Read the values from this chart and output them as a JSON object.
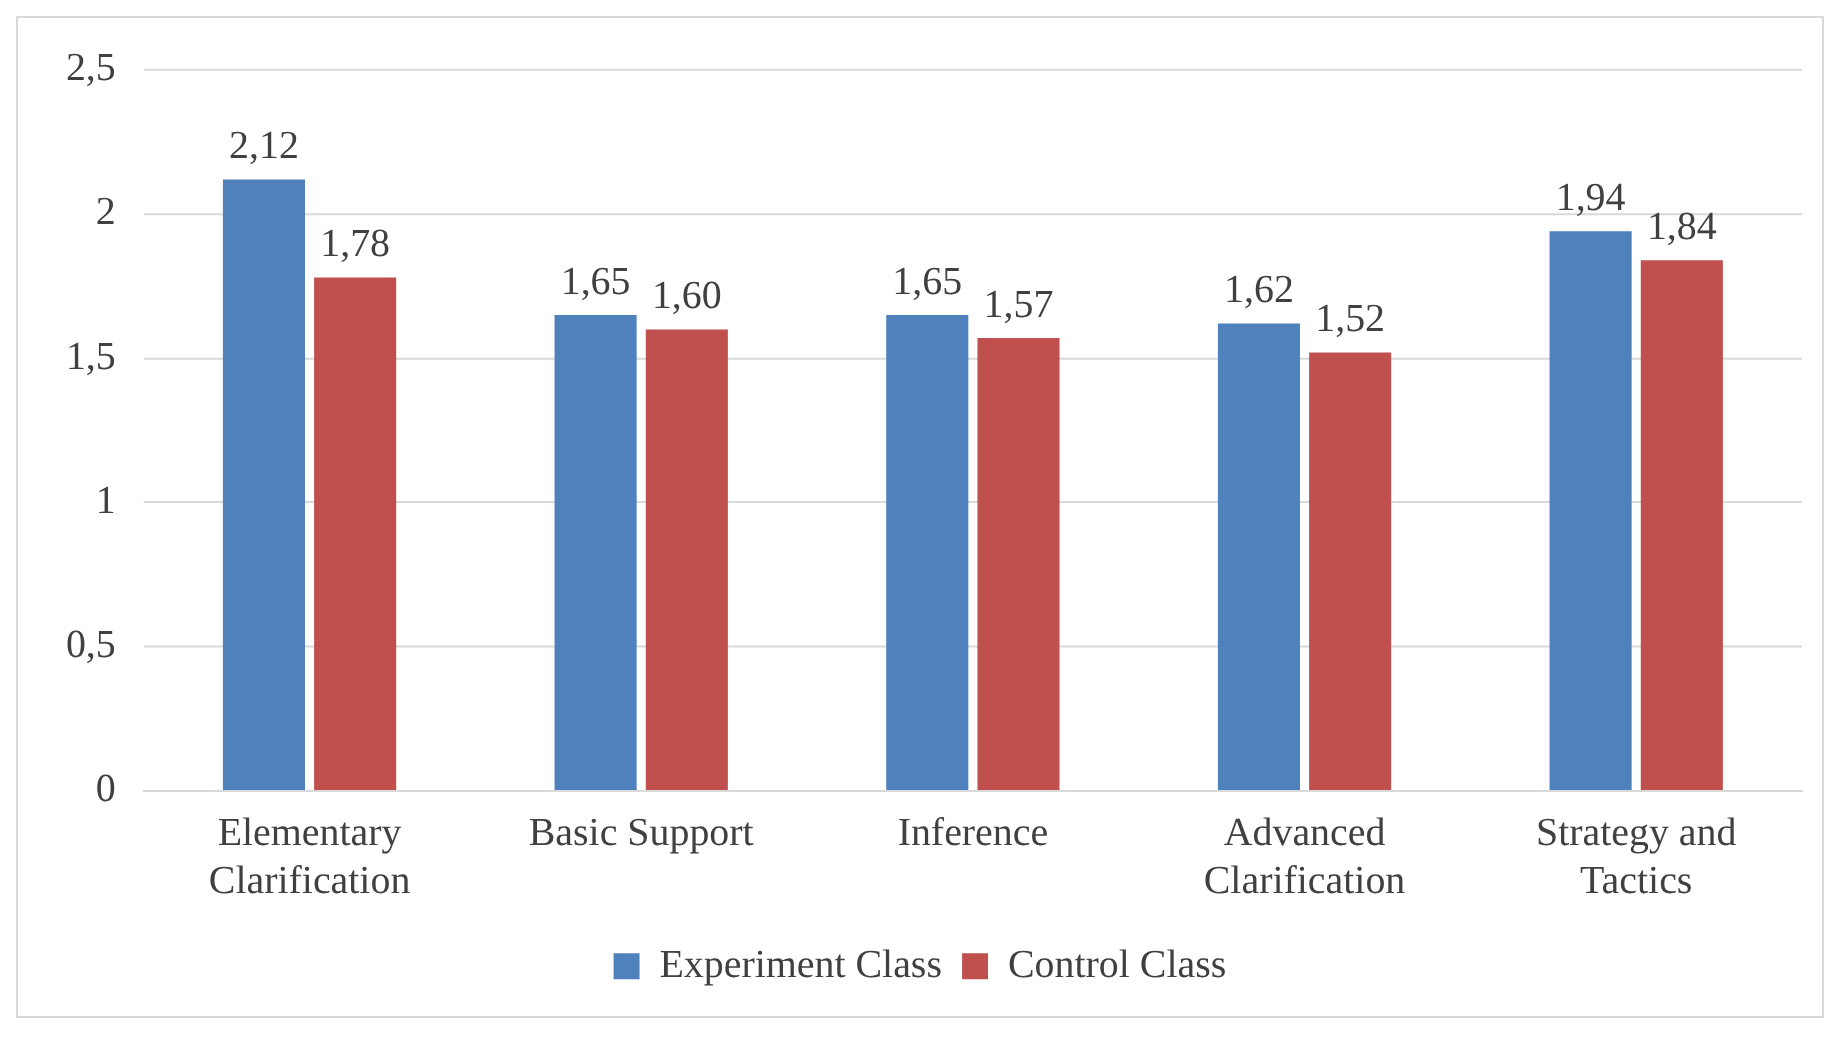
{
  "chart_data": {
    "type": "bar",
    "categories": [
      "Elementary Clarification",
      "Basic Support",
      "Inference",
      "Advanced Clarification",
      "Strategy and Tactics"
    ],
    "series": [
      {
        "name": "Experiment Class",
        "color": "#4f81bd",
        "values": [
          2.12,
          1.65,
          1.65,
          1.62,
          1.94
        ],
        "value_labels": [
          "2,12",
          "1,65",
          "1,65",
          "1,62",
          "1,94"
        ]
      },
      {
        "name": "Control Class",
        "color": "#c0504d",
        "values": [
          1.78,
          1.6,
          1.57,
          1.52,
          1.84
        ],
        "value_labels": [
          "1,78",
          "1,60",
          "1,57",
          "1,52",
          "1,84"
        ]
      }
    ],
    "ylim": [
      0,
      2.5
    ],
    "yticks": [
      0,
      {
        "value": 0.5,
        "label": "0,5"
      },
      1,
      {
        "value": 1.5,
        "label": "1,5"
      },
      2,
      {
        "value": 2.5,
        "label": "2,5"
      }
    ],
    "grid": "y",
    "legend": "bottom"
  }
}
